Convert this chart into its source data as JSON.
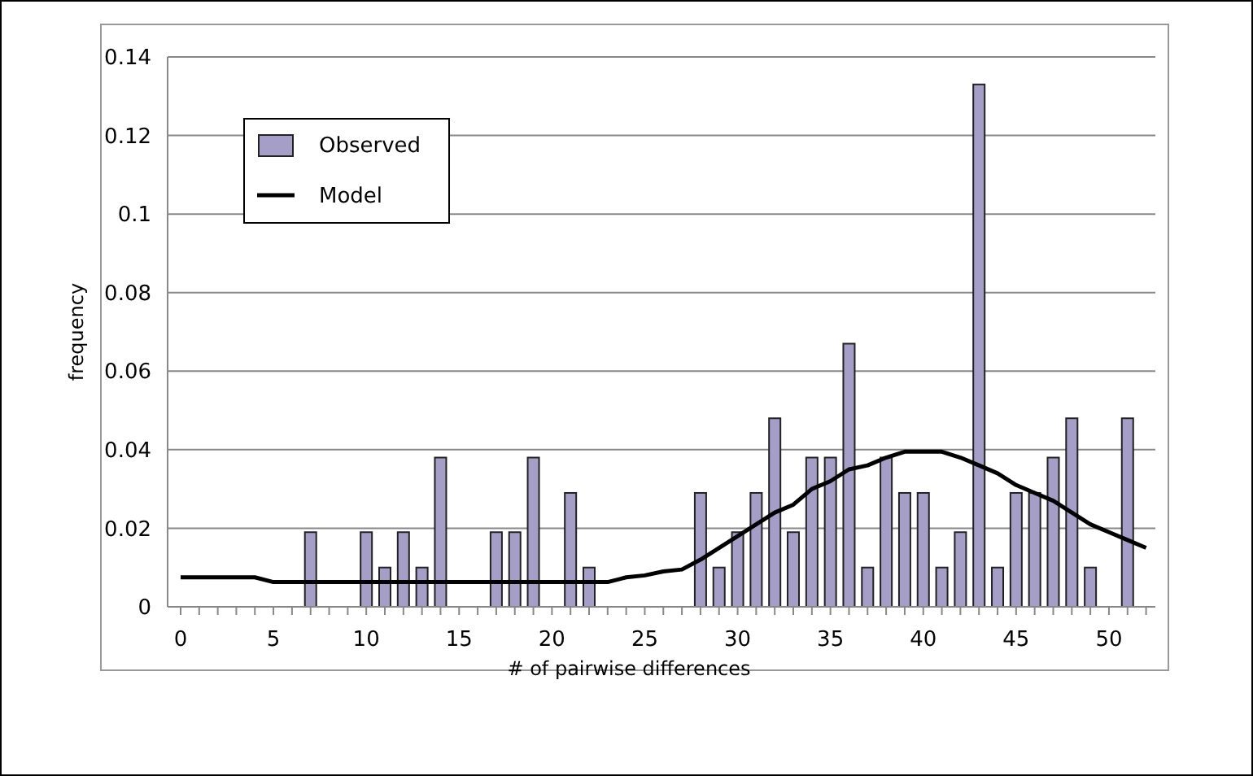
{
  "chart_data": {
    "type": "bar",
    "xlabel": "# of pairwise differences",
    "ylabel": "frequency",
    "categories": [
      "0",
      null,
      null,
      null,
      null,
      "5",
      null,
      null,
      null,
      null,
      "10",
      null,
      null,
      null,
      null,
      "15",
      null,
      null,
      null,
      null,
      "20",
      null,
      null,
      null,
      null,
      "25",
      null,
      null,
      null,
      null,
      "30",
      null,
      null,
      null,
      null,
      "35",
      null,
      null,
      null,
      null,
      "40",
      null,
      null,
      null,
      null,
      "45",
      null,
      null,
      null,
      null,
      "50",
      null,
      null
    ],
    "series": [
      {
        "name": "Observed",
        "color": "#a59fc8",
        "values": [
          null,
          null,
          null,
          null,
          null,
          null,
          null,
          0.019,
          null,
          null,
          0.019,
          0.01,
          0.019,
          0.01,
          0.038,
          null,
          null,
          0.019,
          0.019,
          0.038,
          null,
          0.029,
          0.01,
          null,
          null,
          null,
          null,
          null,
          0.029,
          0.01,
          0.019,
          0.029,
          0.048,
          0.019,
          0.038,
          0.038,
          0.067,
          0.01,
          0.038,
          0.029,
          0.029,
          0.01,
          0.019,
          0.133,
          0.01,
          0.029,
          0.029,
          0.038,
          0.048,
          0.01,
          null,
          0.048,
          null
        ]
      },
      {
        "name": "Model",
        "type": "line",
        "color": "#000000",
        "values": [
          0.0075,
          0.0075,
          0.0075,
          0.0075,
          0.0075,
          0.0063,
          0.0063,
          0.0063,
          0.0063,
          0.0063,
          0.0063,
          0.0063,
          0.0063,
          0.0063,
          0.0063,
          0.0063,
          0.0063,
          0.0063,
          0.0063,
          0.0063,
          0.0063,
          0.0063,
          0.0063,
          0.0063,
          0.0075,
          0.008,
          0.009,
          0.0095,
          0.012,
          0.015,
          0.018,
          0.021,
          0.024,
          0.026,
          0.03,
          0.032,
          0.035,
          0.036,
          0.038,
          0.0395,
          0.0395,
          0.0395,
          0.038,
          0.036,
          0.034,
          0.031,
          0.029,
          0.027,
          0.024,
          0.021,
          0.019,
          0.017,
          0.015
        ]
      }
    ],
    "ylim": [
      0,
      0.14
    ],
    "yticks": [
      0,
      0.02,
      0.04,
      0.06,
      0.08,
      {
        "value": 0.1,
        "label": "0.1"
      },
      0.12,
      0.14
    ],
    "grid": "y",
    "legend": "top left",
    "marker": "none",
    "line_style": "solid"
  }
}
